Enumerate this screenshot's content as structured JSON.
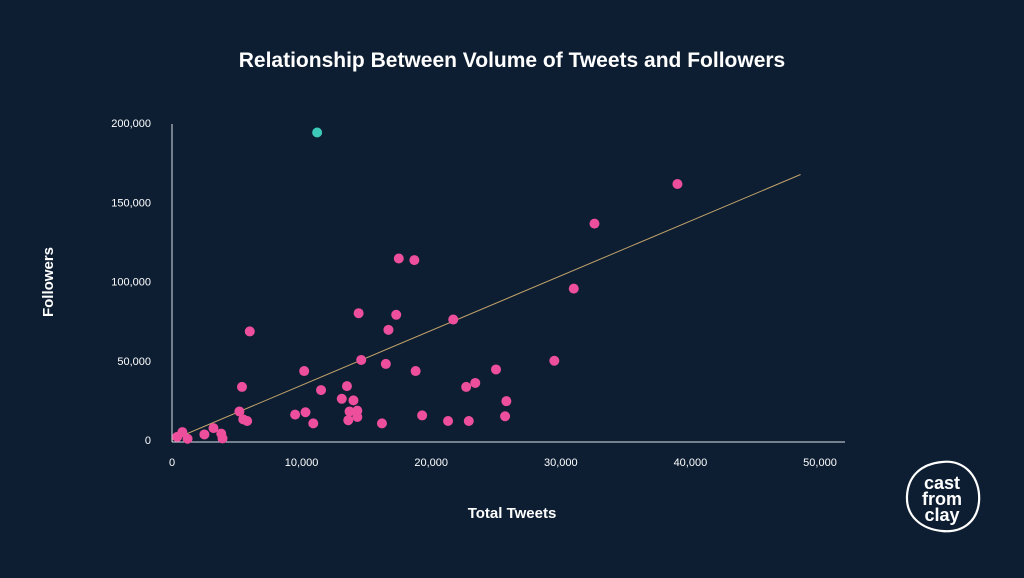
{
  "chart_data": {
    "type": "scatter",
    "title": "Relationship Between Volume of Tweets and Followers",
    "xlabel": "Total Tweets",
    "ylabel": "Followers",
    "xlim": [
      0,
      50000
    ],
    "ylim": [
      0,
      200000
    ],
    "x_ticks": [
      0,
      10000,
      20000,
      30000,
      40000,
      50000
    ],
    "y_ticks": [
      0,
      50000,
      100000,
      150000,
      200000
    ],
    "x_tick_labels": [
      "0",
      "10,000",
      "20,000",
      "30,000",
      "40,000",
      "50,000"
    ],
    "y_tick_labels": [
      "0",
      "50,000",
      "100,000",
      "150,000",
      "200,000"
    ],
    "grid": false,
    "trendline": {
      "from": [
        0,
        0
      ],
      "to": [
        48500,
        167500
      ]
    },
    "colors": {
      "background": "#0d1e32",
      "points": "#ee4f9c",
      "highlight": "#3cc9b8",
      "trendline": "#c2a36a",
      "axis": "#dde3ea",
      "text": "#ffffff"
    },
    "series": [
      {
        "name": "Accounts",
        "points": [
          [
            400,
            2000
          ],
          [
            800,
            5000
          ],
          [
            1200,
            800
          ],
          [
            2500,
            3500
          ],
          [
            3200,
            7500
          ],
          [
            3800,
            4000
          ],
          [
            3900,
            1000
          ],
          [
            5200,
            18000
          ],
          [
            5400,
            33500
          ],
          [
            5500,
            13000
          ],
          [
            5800,
            12000
          ],
          [
            6000,
            68500
          ],
          [
            9500,
            16000
          ],
          [
            10200,
            43500
          ],
          [
            10300,
            17500
          ],
          [
            10900,
            10500
          ],
          [
            11500,
            31500
          ],
          [
            13100,
            26000
          ],
          [
            13500,
            34000
          ],
          [
            13600,
            12500
          ],
          [
            13700,
            18000
          ],
          [
            14000,
            25000
          ],
          [
            14300,
            14500
          ],
          [
            14300,
            18500
          ],
          [
            14400,
            80000
          ],
          [
            14600,
            50500
          ],
          [
            16200,
            10500
          ],
          [
            16500,
            48000
          ],
          [
            16700,
            69500
          ],
          [
            17300,
            79000
          ],
          [
            17500,
            114500
          ],
          [
            18700,
            113500
          ],
          [
            18800,
            43500
          ],
          [
            19300,
            15500
          ],
          [
            21300,
            12000
          ],
          [
            21700,
            76000
          ],
          [
            22700,
            33500
          ],
          [
            22900,
            12000
          ],
          [
            23400,
            36000
          ],
          [
            25000,
            44500
          ],
          [
            25700,
            15000
          ],
          [
            25800,
            24500
          ],
          [
            29500,
            50000
          ],
          [
            31000,
            95500
          ],
          [
            32600,
            136500
          ],
          [
            39000,
            161500
          ]
        ]
      },
      {
        "name": "Outlier",
        "points": [
          [
            11200,
            194000
          ]
        ]
      }
    ]
  },
  "brand": {
    "logo_lines": [
      "cast",
      "from",
      "clay"
    ]
  }
}
